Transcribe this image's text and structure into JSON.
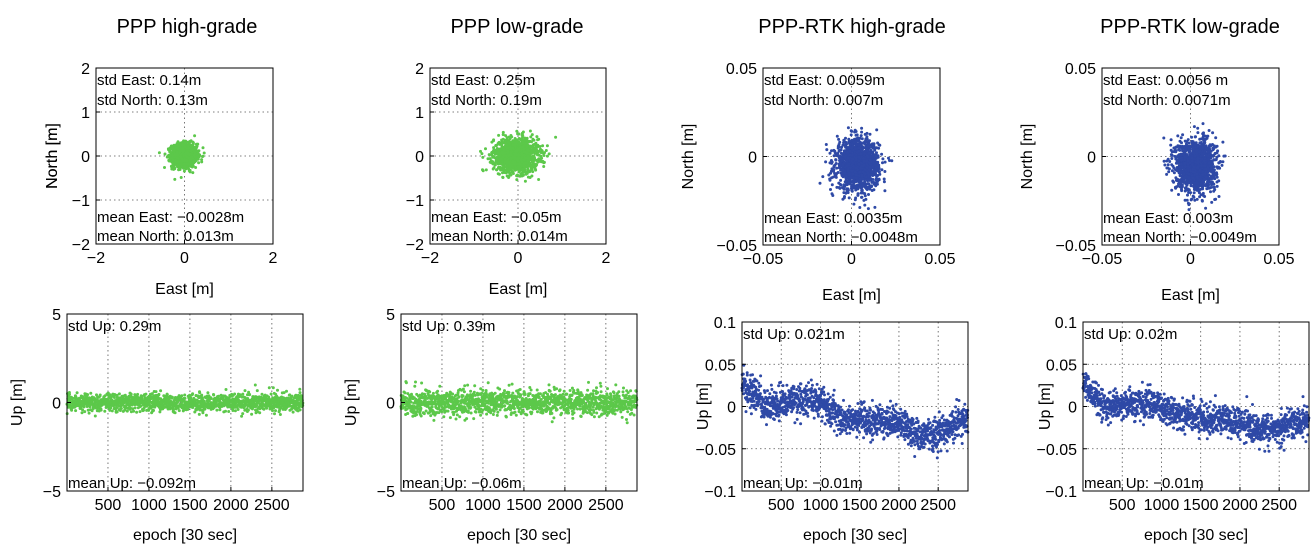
{
  "chart_data": [
    {
      "type": "scatter",
      "panel": "top",
      "title": "PPP high-grade",
      "xlabel": "East [m]",
      "ylabel": "North [m]",
      "xlim": [
        -2,
        2
      ],
      "ylim": [
        -2,
        2
      ],
      "xticks": [
        -2,
        0,
        2
      ],
      "yticks": [
        -2,
        -1,
        0,
        1,
        2
      ],
      "xtick_labels": [
        "−2",
        "0",
        "2"
      ],
      "ytick_labels": [
        "−2",
        "−1",
        "0",
        "1",
        "2"
      ],
      "grid": true,
      "color": "#5cc84a",
      "annotations": {
        "std_east": "std East:  0.14m",
        "std_north": "std North: 0.13m",
        "mean_east": "mean East:  −0.0028m",
        "mean_north": "mean North: 0.013m"
      },
      "series": [
        {
          "mean": [
            -0.0028,
            0.013
          ],
          "std": [
            0.14,
            0.13
          ],
          "n_points": 2880
        }
      ]
    },
    {
      "type": "scatter",
      "panel": "top",
      "title": "PPP low-grade",
      "xlabel": "East [m]",
      "ylabel": "North [m]",
      "xlim": [
        -2,
        2
      ],
      "ylim": [
        -2,
        2
      ],
      "xticks": [
        -2,
        0,
        2
      ],
      "yticks": [
        -2,
        -1,
        0,
        1,
        2
      ],
      "xtick_labels": [
        "−2",
        "0",
        "2"
      ],
      "ytick_labels": [
        "−2",
        "−1",
        "0",
        "1",
        "2"
      ],
      "grid": true,
      "color": "#5cc84a",
      "annotations": {
        "std_east": "std East:  0.25m",
        "std_north": "std North: 0.19m",
        "mean_east": "mean East:  −0.05m",
        "mean_north": "mean North: 0.014m"
      },
      "series": [
        {
          "mean": [
            -0.05,
            0.014
          ],
          "std": [
            0.25,
            0.19
          ],
          "n_points": 2880
        }
      ]
    },
    {
      "type": "scatter",
      "panel": "top",
      "title": "PPP-RTK high-grade",
      "xlabel": "East [m]",
      "ylabel": "North [m]",
      "xlim": [
        -0.05,
        0.05
      ],
      "ylim": [
        -0.05,
        0.05
      ],
      "xticks": [
        -0.05,
        0,
        0.05
      ],
      "yticks": [
        -0.05,
        0,
        0.05
      ],
      "xtick_labels": [
        "−0.05",
        "0",
        "0.05"
      ],
      "ytick_labels": [
        "−0.05",
        "0",
        "0.05"
      ],
      "grid": true,
      "color": "#2e49a6",
      "annotations": {
        "std_east": "std East:  0.0059m",
        "std_north": "std North: 0.007m",
        "mean_east": "mean East:  0.0035m",
        "mean_north": "mean North: −0.0048m"
      },
      "series": [
        {
          "mean": [
            0.0035,
            -0.0048
          ],
          "std": [
            0.0059,
            0.007
          ],
          "n_points": 2880
        }
      ]
    },
    {
      "type": "scatter",
      "panel": "top",
      "title": "PPP-RTK low-grade",
      "xlabel": "East [m]",
      "ylabel": "North [m]",
      "xlim": [
        -0.05,
        0.05
      ],
      "ylim": [
        -0.05,
        0.05
      ],
      "xticks": [
        -0.05,
        0,
        0.05
      ],
      "yticks": [
        -0.05,
        0,
        0.05
      ],
      "xtick_labels": [
        "−0.05",
        "0",
        "0.05"
      ],
      "ytick_labels": [
        "−0.05",
        "0",
        "0.05"
      ],
      "grid": true,
      "color": "#2e49a6",
      "annotations": {
        "std_east": "std East:  0.0056    m",
        "std_north": "std North: 0.0071m",
        "mean_east": "mean East:  0.003m",
        "mean_north": "mean North: −0.0049m"
      },
      "series": [
        {
          "mean": [
            0.003,
            -0.0049
          ],
          "std": [
            0.0056,
            0.0071
          ],
          "n_points": 2880
        }
      ]
    },
    {
      "type": "scatter",
      "panel": "bottom",
      "xlabel": "epoch [30 sec]",
      "ylabel": "Up [m]",
      "xlim": [
        0,
        2880
      ],
      "ylim": [
        -5,
        5
      ],
      "xticks": [
        500,
        1000,
        1500,
        2000,
        2500
      ],
      "yticks": [
        -5,
        0,
        5
      ],
      "xtick_labels": [
        "500",
        "1000",
        "1500",
        "2000",
        "2500"
      ],
      "ytick_labels": [
        "−5",
        "0",
        "5"
      ],
      "grid": true,
      "color": "#5cc84a",
      "annotations": {
        "std_up": "std Up: 0.29m",
        "mean_up": "mean Up: −0.092m"
      },
      "series": [
        {
          "mean": -0.092,
          "std": 0.29,
          "n_points": 2880,
          "trend": [
            [
              0,
              0
            ],
            [
              2880,
              0
            ]
          ]
        }
      ]
    },
    {
      "type": "scatter",
      "panel": "bottom",
      "xlabel": "epoch [30 sec]",
      "ylabel": "Up [m]",
      "xlim": [
        0,
        2880
      ],
      "ylim": [
        -5,
        5
      ],
      "xticks": [
        500,
        1000,
        1500,
        2000,
        2500
      ],
      "yticks": [
        -5,
        0,
        5
      ],
      "xtick_labels": [
        "500",
        "1000",
        "1500",
        "2000",
        "2500"
      ],
      "ytick_labels": [
        "−5",
        "0",
        "5"
      ],
      "grid": true,
      "color": "#5cc84a",
      "annotations": {
        "std_up": "std Up: 0.39m",
        "mean_up": "mean Up: −0.06m"
      },
      "series": [
        {
          "mean": -0.06,
          "std": 0.39,
          "n_points": 2880,
          "trend": [
            [
              0,
              0
            ],
            [
              2880,
              0
            ]
          ]
        }
      ]
    },
    {
      "type": "scatter",
      "panel": "bottom",
      "xlabel": "epoch [30 sec]",
      "ylabel": "Up [m]",
      "xlim": [
        0,
        2880
      ],
      "ylim": [
        -0.1,
        0.1
      ],
      "xticks": [
        500,
        1000,
        1500,
        2000,
        2500
      ],
      "yticks": [
        -0.1,
        -0.05,
        0,
        0.05,
        0.1
      ],
      "xtick_labels": [
        "500",
        "1000",
        "1500",
        "2000",
        "2500"
      ],
      "ytick_labels": [
        "−0.1",
        "−0.05",
        "0",
        "0.05",
        "0.1"
      ],
      "grid": true,
      "color": "#2e49a6",
      "annotations": {
        "std_up": "std Up: 0.021m",
        "mean_up": "mean Up: −0.01m"
      },
      "series": [
        {
          "mean": -0.01,
          "std": 0.021,
          "n_points": 2880,
          "trend": [
            [
              0,
              0.03
            ],
            [
              300,
              0.0
            ],
            [
              800,
              0.01
            ],
            [
              1000,
              0.005
            ],
            [
              1300,
              -0.015
            ],
            [
              1600,
              -0.015
            ],
            [
              2000,
              -0.02
            ],
            [
              2300,
              -0.035
            ],
            [
              2500,
              -0.03
            ],
            [
              2880,
              -0.015
            ]
          ]
        }
      ]
    },
    {
      "type": "scatter",
      "panel": "bottom",
      "xlabel": "epoch [30 sec]",
      "ylabel": "Up [m]",
      "xlim": [
        0,
        2880
      ],
      "ylim": [
        -0.1,
        0.1
      ],
      "xticks": [
        500,
        1000,
        1500,
        2000,
        2500
      ],
      "yticks": [
        -0.1,
        -0.05,
        0,
        0.05,
        0.1
      ],
      "xtick_labels": [
        "500",
        "1000",
        "1500",
        "2000",
        "2500"
      ],
      "ytick_labels": [
        "−0.1",
        "−0.05",
        "0",
        "0.05",
        "0.1"
      ],
      "grid": true,
      "color": "#2e49a6",
      "annotations": {
        "std_up": "std Up: 0.02m",
        "mean_up": "mean Up: −0.01m"
      },
      "series": [
        {
          "mean": -0.01,
          "std": 0.02,
          "n_points": 2880,
          "trend": [
            [
              0,
              0.025
            ],
            [
              300,
              0.0
            ],
            [
              800,
              0.005
            ],
            [
              1200,
              -0.01
            ],
            [
              1600,
              -0.015
            ],
            [
              2000,
              -0.02
            ],
            [
              2300,
              -0.03
            ],
            [
              2500,
              -0.025
            ],
            [
              2880,
              -0.015
            ]
          ]
        }
      ]
    }
  ]
}
